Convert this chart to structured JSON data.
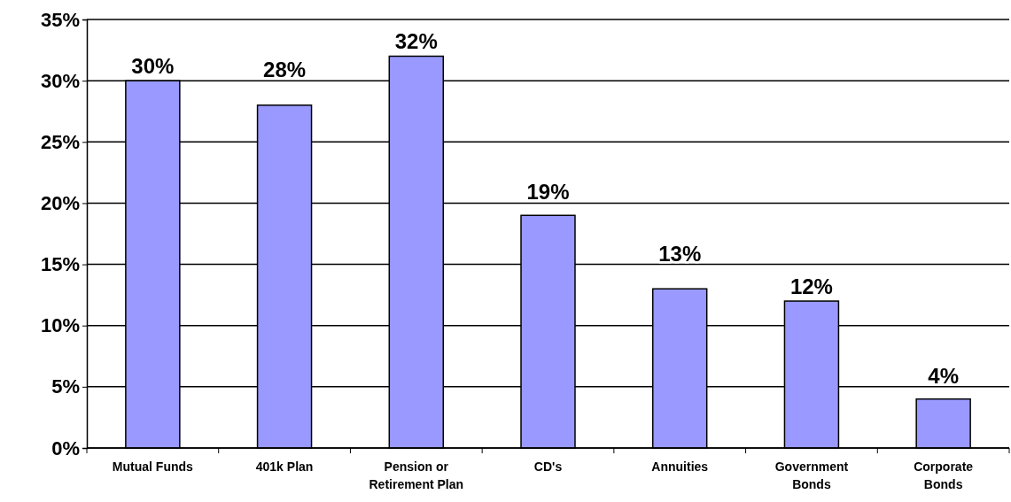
{
  "chart_data": {
    "type": "bar",
    "categories": [
      "Mutual  Funds",
      "401k Plan",
      "Pension or\nRetirement Plan",
      "CD's",
      "Annuities",
      "Government\nBonds",
      "Corporate\nBonds"
    ],
    "values": [
      30,
      28,
      32,
      19,
      13,
      12,
      4
    ],
    "value_labels": [
      "30%",
      "28%",
      "32%",
      "19%",
      "13%",
      "12%",
      "4%"
    ],
    "color": "#9999ff",
    "ylim": [
      0,
      35
    ],
    "yticks": [
      {
        "value": 0,
        "label": "0%"
      },
      {
        "value": 5,
        "label": "5%"
      },
      {
        "value": 10,
        "label": "10%"
      },
      {
        "value": 15,
        "label": "15%"
      },
      {
        "value": 20,
        "label": "20%"
      },
      {
        "value": 25,
        "label": "25%"
      },
      {
        "value": 30,
        "label": "30%"
      },
      {
        "value": 35,
        "label": "35%"
      }
    ],
    "grid": "y"
  }
}
